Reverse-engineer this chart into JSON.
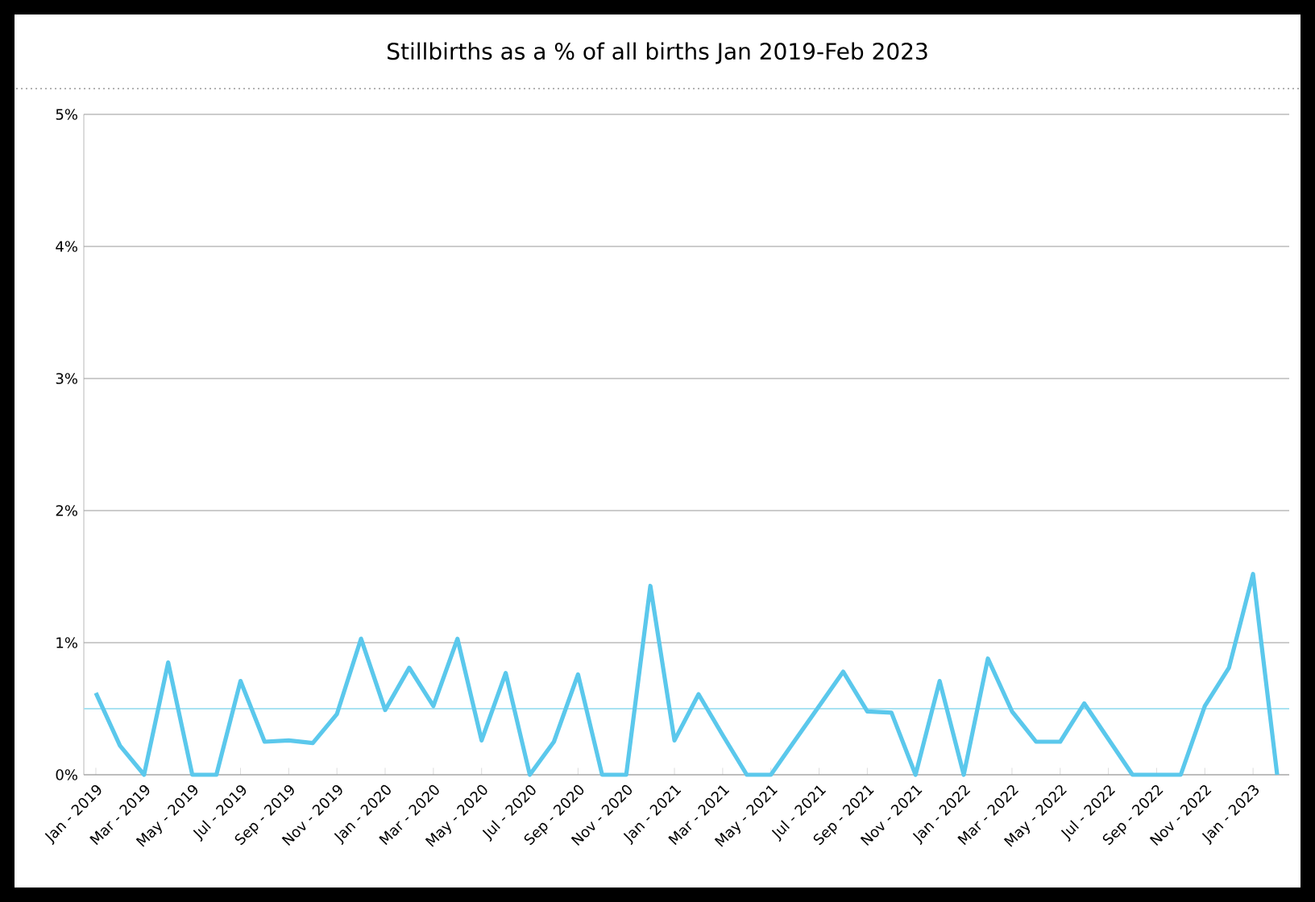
{
  "chart_data": {
    "type": "line",
    "title": "Stillbirths as a % of all births Jan 2019-Feb 2023",
    "categories": [
      "Jan - 2019",
      null,
      "Mar - 2019",
      null,
      "May - 2019",
      null,
      "Jul - 2019",
      null,
      "Sep - 2019",
      null,
      "Nov - 2019",
      null,
      "Jan - 2020",
      null,
      "Mar - 2020",
      null,
      "May - 2020",
      null,
      "Jul - 2020",
      null,
      "Sep - 2020",
      null,
      "Nov - 2020",
      null,
      "Jan - 2021",
      null,
      "Mar - 2021",
      null,
      "May - 2021",
      null,
      "Jul - 2021",
      null,
      "Sep - 2021",
      null,
      "Nov - 2021",
      null,
      "Jan - 2022",
      null,
      "Mar - 2022",
      null,
      "May - 2022",
      null,
      "Jul - 2022",
      null,
      "Sep - 2022",
      null,
      "Nov - 2022",
      null,
      "Jan - 2023",
      null
    ],
    "series": [
      {
        "color": "#5bc8ec",
        "values": [
          0.62,
          0.22,
          0,
          0.85,
          0,
          0,
          0.71,
          0.25,
          0.26,
          0.24,
          0.46,
          1.03,
          0.49,
          0.81,
          0.52,
          1.03,
          0.26,
          0.77,
          0,
          0.25,
          0.76,
          0,
          0,
          1.43,
          0.26,
          0.61,
          0.3,
          0,
          0,
          0.26,
          0.52,
          0.78,
          0.48,
          0.47,
          0,
          0.71,
          0,
          0.88,
          0.48,
          0.25,
          0.25,
          0.54,
          0.27,
          0,
          0,
          0,
          0.52,
          0.81,
          1.52,
          0
        ]
      }
    ],
    "ylim": [
      0,
      5
    ],
    "yticks": [
      {
        "value": 0,
        "label": "0%"
      },
      {
        "value": 1,
        "label": "1%"
      },
      {
        "value": 2,
        "label": "2%"
      },
      {
        "value": 3,
        "label": "3%"
      },
      {
        "value": 4,
        "label": "4%"
      },
      {
        "value": 5,
        "label": "5%"
      }
    ],
    "ref_lines": [
      {
        "axis": "y",
        "value": 0.5,
        "color": "#a8e2f2"
      }
    ],
    "grid": "y",
    "marker": "none",
    "line_style": "solid"
  }
}
